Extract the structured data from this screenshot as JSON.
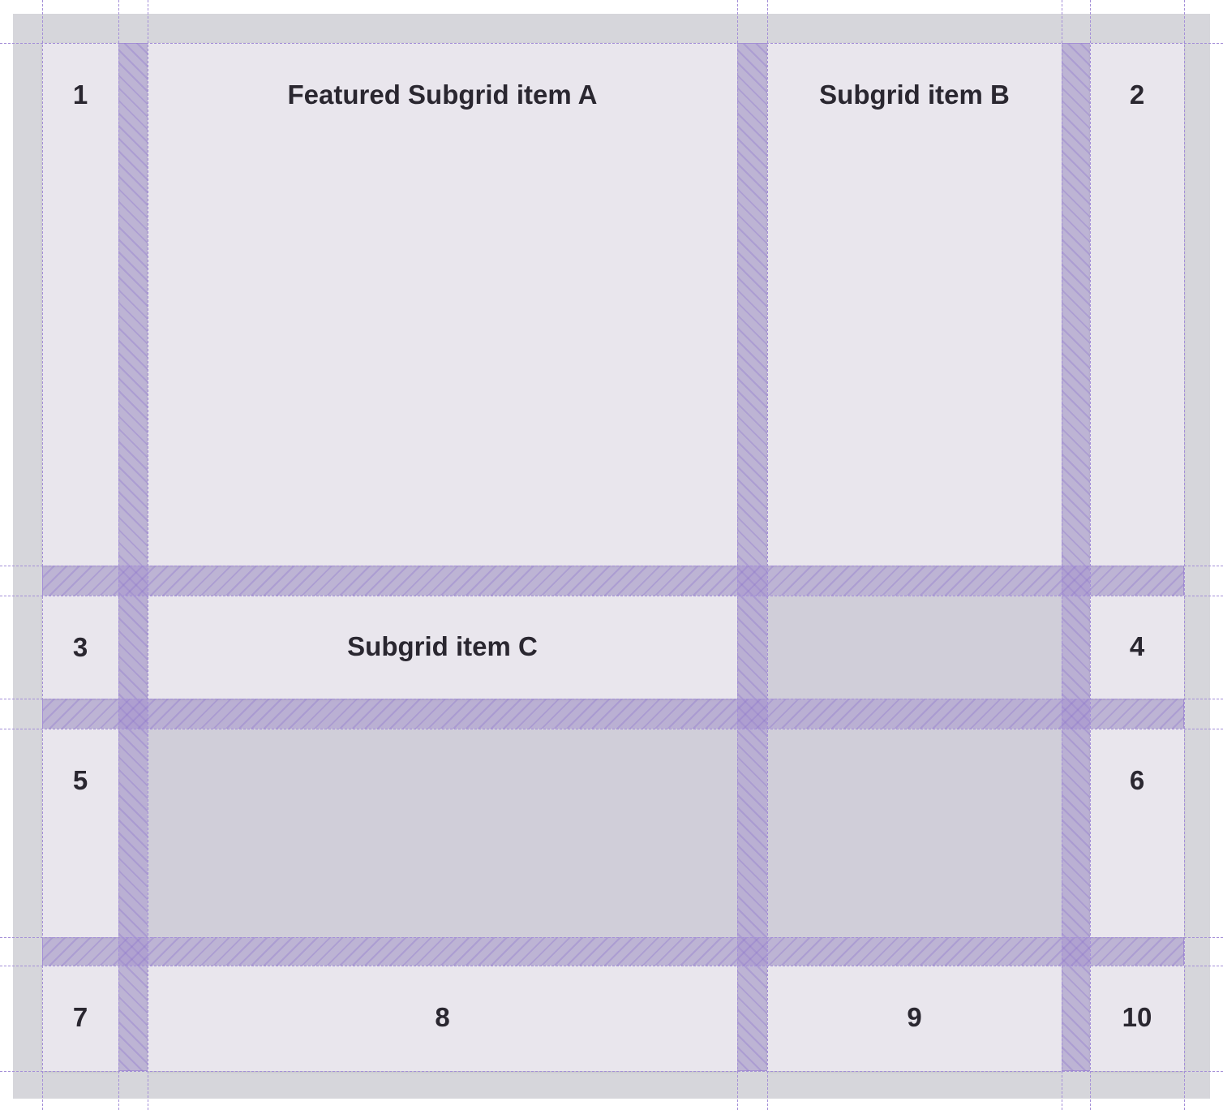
{
  "items": {
    "c1": "1",
    "a": "Featured Subgrid item A",
    "b": "Subgrid item B",
    "c2": "2",
    "c3": "3",
    "c": "Subgrid item C",
    "c4": "4",
    "c5": "5",
    "c6": "6",
    "c7": "7",
    "c8": "8",
    "c9": "9",
    "c10": "10"
  },
  "colors": {
    "cell": "#e9e6ed",
    "subgrid_background": "#d0ced9",
    "gap_overlay": "#a08ccd",
    "grid_lines": "#a48fd8"
  }
}
